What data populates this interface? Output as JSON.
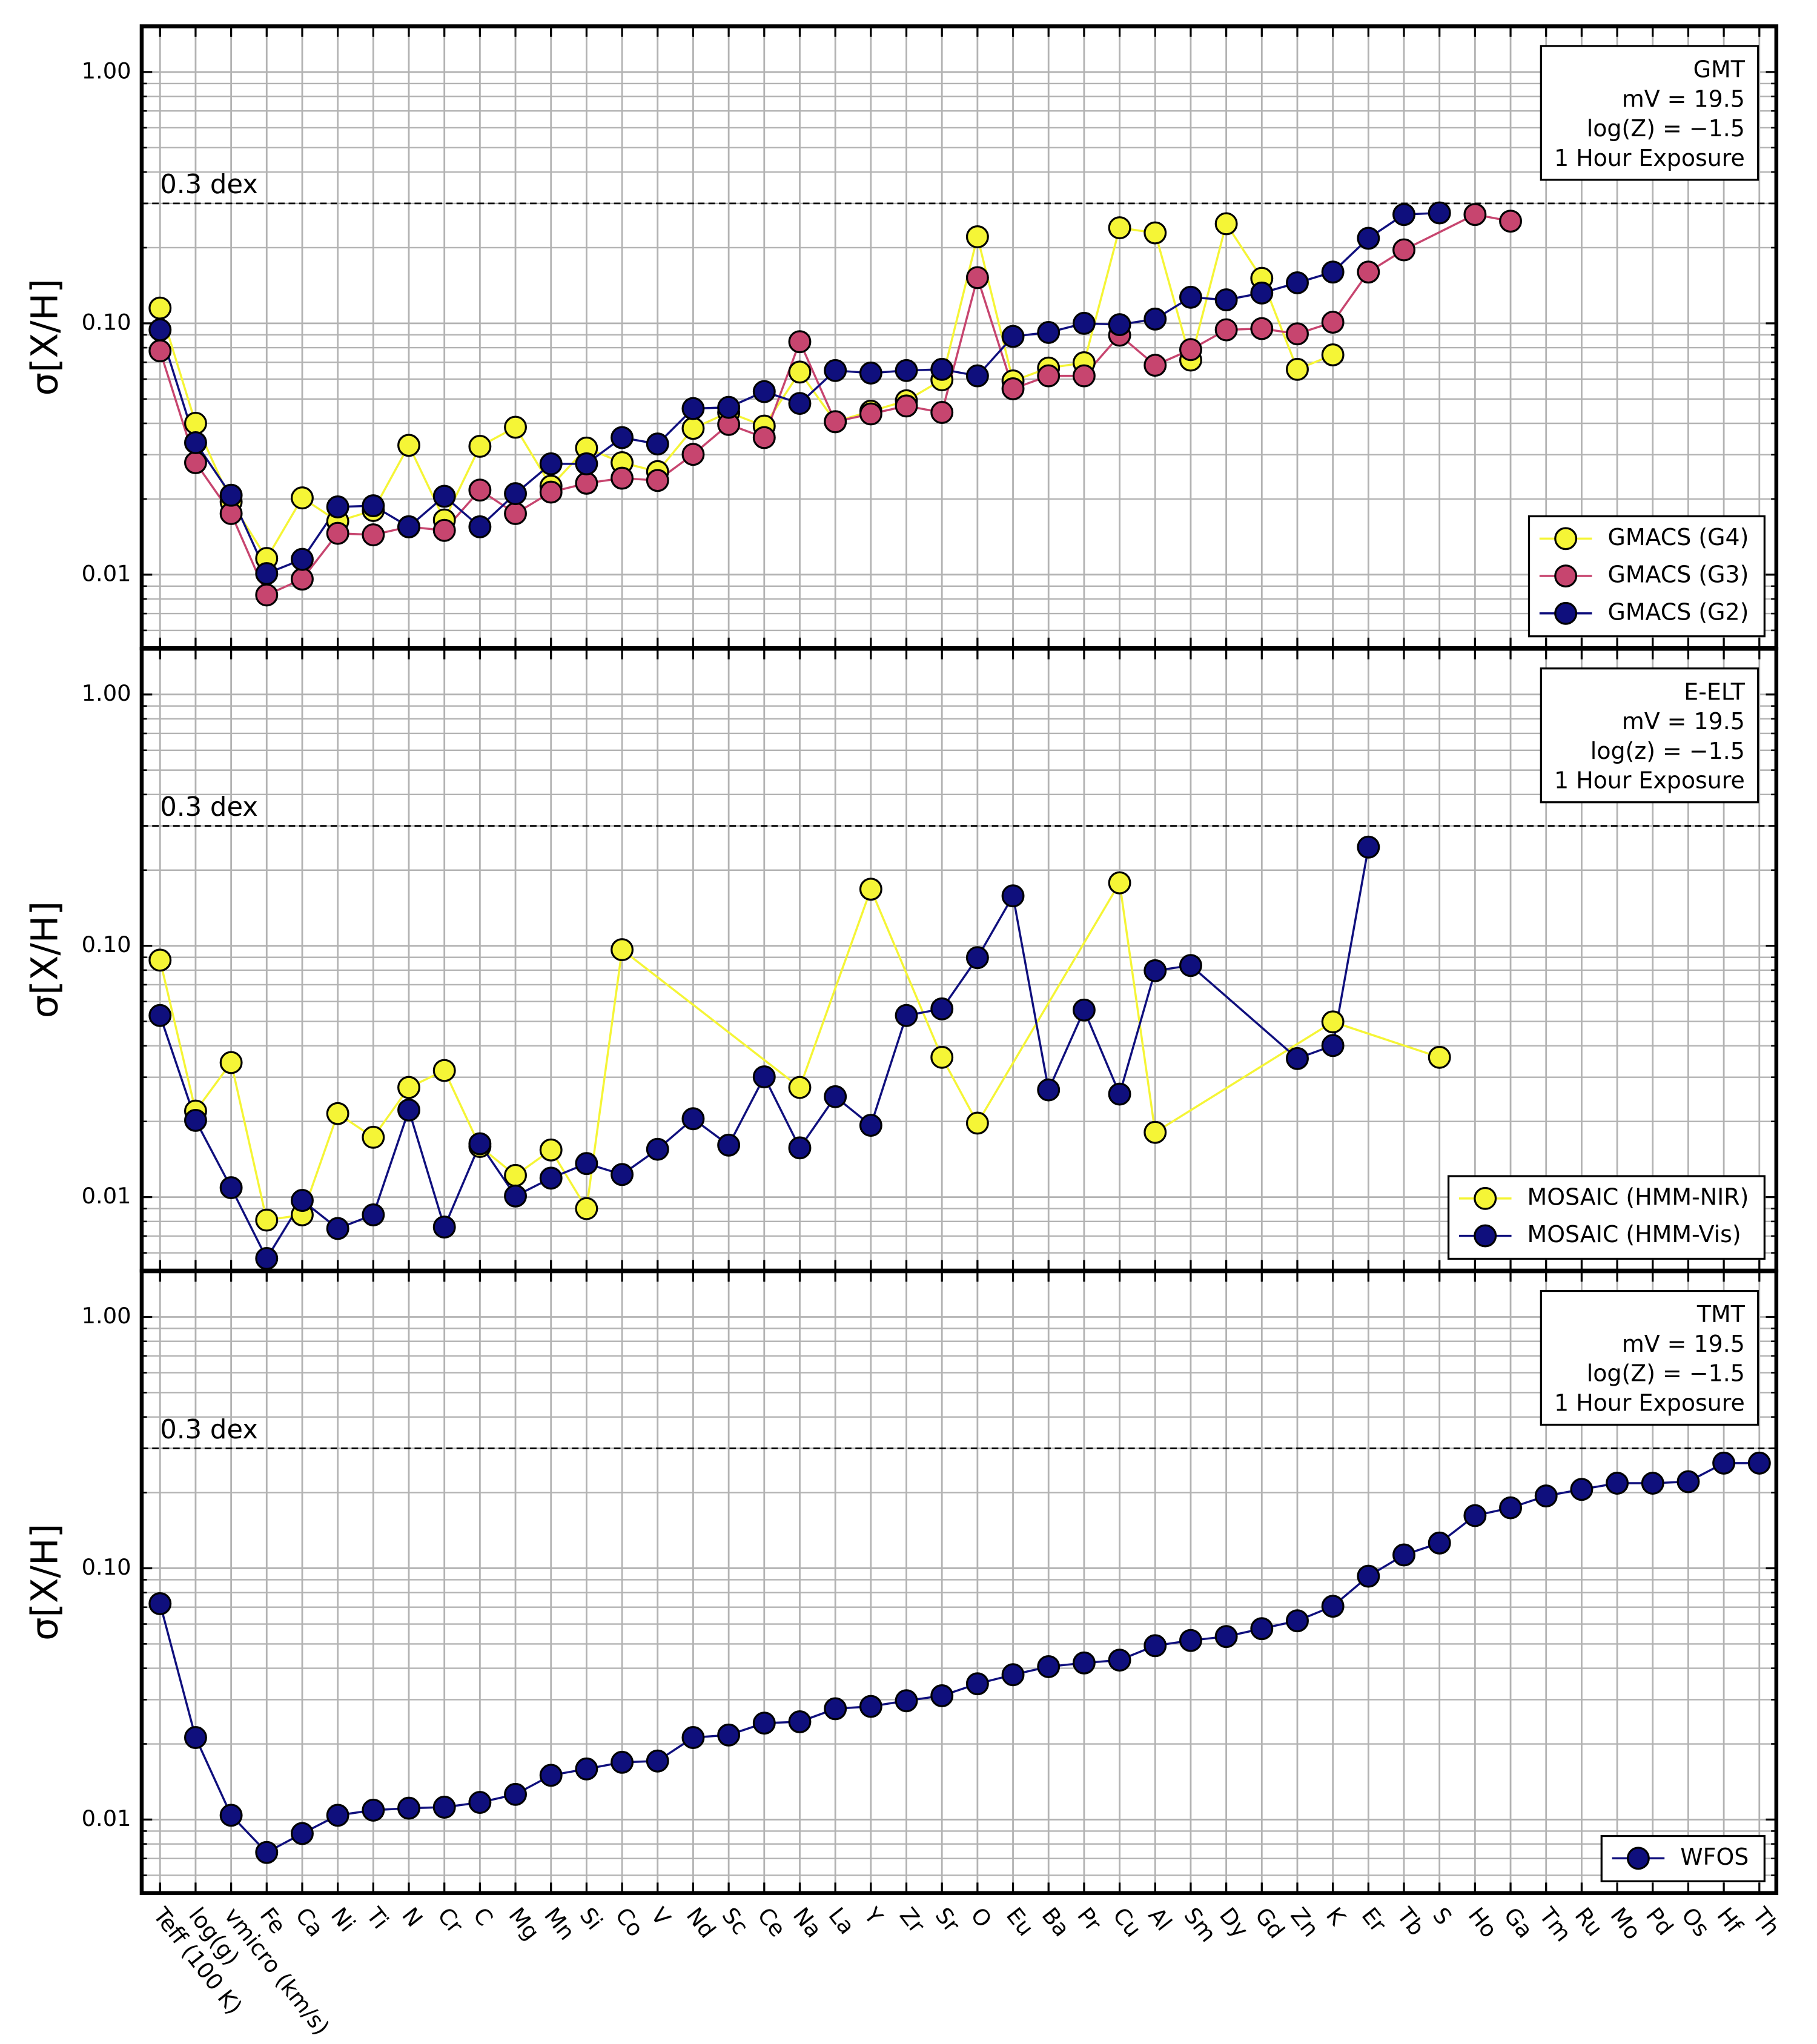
{
  "chart_data": [
    {
      "type": "line",
      "ylabel": "σ[X/H]",
      "log_scale": true,
      "grid": true,
      "legend": "lower right",
      "annotation_box": [
        "GMT",
        "mV = 19.5",
        "log(Z) = −1.5",
        "1 Hour Exposure"
      ],
      "reference_line": {
        "value": 0.3,
        "label": "0.3 dex"
      },
      "ylim": [
        0.0051,
        1.52
      ],
      "yticks": [
        {
          "value": 0.01,
          "label": "0.01"
        },
        {
          "value": 0.1,
          "label": "0.10"
        },
        {
          "value": 1,
          "label": "1.00"
        }
      ],
      "yticks_minor": [
        0.006,
        0.007,
        0.008,
        0.009,
        0.02,
        0.03,
        0.04,
        0.05,
        0.06,
        0.07,
        0.08,
        0.09,
        0.2,
        0.3,
        0.4,
        0.5,
        0.6,
        0.7,
        0.8,
        0.9
      ],
      "series": [
        {
          "name": "GMACS (G4)",
          "color": "#f5f536",
          "values": [
            0.115,
            0.04,
            0.0195,
            0.0116,
            0.0202,
            0.0163,
            0.018,
            0.0327,
            0.0165,
            0.0324,
            0.0386,
            0.0225,
            0.0319,
            0.0279,
            0.0257,
            0.0382,
            0.0442,
            0.039,
            0.064,
            0.0406,
            0.0447,
            0.0492,
            0.0596,
            0.221,
            0.059,
            0.0664,
            0.0697,
            0.24,
            0.229,
            0.0714,
            0.249,
            0.151,
            0.0656,
            0.0749,
            null,
            null,
            null,
            null,
            null,
            null,
            null,
            null,
            null,
            null,
            null,
            null
          ]
        },
        {
          "name": "GMACS (G3)",
          "color": "#c7456f",
          "values": [
            0.0777,
            0.0279,
            0.0175,
            0.0083,
            0.0096,
            0.0146,
            0.0144,
            0.0155,
            0.015,
            0.0217,
            0.0175,
            0.0213,
            0.0231,
            0.0242,
            0.0237,
            0.0301,
            0.0396,
            0.0351,
            0.0845,
            0.0406,
            0.0436,
            0.0469,
            0.0442,
            0.152,
            0.0549,
            0.0618,
            0.0618,
            0.0897,
            0.0681,
            0.0786,
            0.0942,
            0.0953,
            0.0908,
            0.101,
            0.16,
            0.196,
            null,
            0.271,
            0.255,
            null,
            null,
            null,
            null,
            null,
            null,
            null
          ]
        },
        {
          "name": "GMACS (G2)",
          "color": "#0f0f7d",
          "values": [
            0.0942,
            0.0335,
            0.0207,
            0.0101,
            0.0115,
            0.0186,
            0.0188,
            0.0155,
            0.0205,
            0.0155,
            0.021,
            0.0276,
            0.0276,
            0.0351,
            0.0331,
            0.0458,
            0.0463,
            0.0535,
            0.048,
            0.0649,
            0.0634,
            0.0649,
            0.0656,
            0.0618,
            0.0887,
            0.092,
            0.1,
            0.0988,
            0.104,
            0.127,
            0.124,
            0.132,
            0.145,
            0.16,
            0.218,
            0.271,
            0.275,
            null,
            null,
            null,
            null,
            null,
            null,
            null,
            null,
            null
          ]
        }
      ]
    },
    {
      "type": "line",
      "ylabel": "σ[X/H]",
      "log_scale": true,
      "grid": true,
      "legend": "lower right",
      "annotation_box": [
        "E-ELT",
        "mV = 19.5",
        "log(z) = −1.5",
        "1 Hour Exposure"
      ],
      "reference_line": {
        "value": 0.3,
        "label": "0.3 dex"
      },
      "ylim": [
        0.0051,
        1.52
      ],
      "yticks": [
        {
          "value": 0.01,
          "label": "0.01"
        },
        {
          "value": 0.1,
          "label": "0.10"
        },
        {
          "value": 1,
          "label": "1.00"
        }
      ],
      "yticks_minor": [
        0.006,
        0.007,
        0.008,
        0.009,
        0.02,
        0.03,
        0.04,
        0.05,
        0.06,
        0.07,
        0.08,
        0.09,
        0.2,
        0.3,
        0.4,
        0.5,
        0.6,
        0.7,
        0.8,
        0.9
      ],
      "series": [
        {
          "name": "MOSAIC (HMM-NIR)",
          "color": "#f5f536",
          "values": [
            0.0877,
            0.022,
            0.0343,
            0.0081,
            0.0085,
            0.0215,
            0.0173,
            0.0273,
            0.0319,
            0.0159,
            0.0122,
            0.0154,
            0.009,
            0.0965,
            null,
            null,
            null,
            null,
            0.0273,
            null,
            0.168,
            null,
            0.036,
            0.0197,
            null,
            null,
            null,
            0.178,
            0.0181,
            null,
            null,
            null,
            null,
            0.0498,
            null,
            null,
            0.036,
            null,
            null,
            null,
            null,
            null,
            null,
            null,
            null,
            null
          ]
        },
        {
          "name": "MOSAIC (HMM-Vis)",
          "color": "#0f0f7d",
          "values": [
            0.0528,
            0.0202,
            0.0109,
            0.0057,
            0.0097,
            0.0075,
            0.0085,
            0.0222,
            0.0076,
            0.0163,
            0.0101,
            0.0119,
            0.0136,
            0.0123,
            0.0155,
            0.0205,
            0.0161,
            0.0301,
            0.0157,
            0.0251,
            0.0193,
            0.0528,
            0.0561,
            0.0897,
            0.158,
            0.0267,
            0.0555,
            0.0257,
            0.0796,
            0.0835,
            null,
            null,
            0.0356,
            0.0401,
            0.247,
            null,
            null,
            null,
            null,
            null,
            null,
            null,
            null,
            null,
            null,
            null
          ]
        }
      ]
    },
    {
      "type": "line",
      "ylabel": "σ[X/H]",
      "log_scale": true,
      "grid": true,
      "legend": "lower right",
      "annotation_box": [
        "TMT",
        "mV = 19.5",
        "log(Z) = −1.5",
        "1 Hour Exposure"
      ],
      "reference_line": {
        "value": 0.3,
        "label": "0.3 dex"
      },
      "ylim": [
        0.0051,
        1.52
      ],
      "yticks": [
        {
          "value": 0.01,
          "label": "0.01"
        },
        {
          "value": 0.1,
          "label": "0.10"
        },
        {
          "value": 1,
          "label": "1.00"
        }
      ],
      "yticks_minor": [
        0.006,
        0.007,
        0.008,
        0.009,
        0.02,
        0.03,
        0.04,
        0.05,
        0.06,
        0.07,
        0.08,
        0.09,
        0.2,
        0.3,
        0.4,
        0.5,
        0.6,
        0.7,
        0.8,
        0.9
      ],
      "categories": [
        "Teff (100 K)",
        "log(g)",
        "vmicro (km/s)",
        "Fe",
        "Ca",
        "Ni",
        "Ti",
        "N",
        "Cr",
        "C",
        "Mg",
        "Mn",
        "Si",
        "Co",
        "V",
        "Nd",
        "Sc",
        "Ce",
        "Na",
        "La",
        "Y",
        "Zr",
        "Sr",
        "O",
        "Eu",
        "Ba",
        "Pr",
        "Cu",
        "Al",
        "Sm",
        "Dy",
        "Gd",
        "Zn",
        "K",
        "Er",
        "Tb",
        "S",
        "Ho",
        "Ga",
        "Tm",
        "Ru",
        "Mo",
        "Pd",
        "Os",
        "Hf",
        "Th"
      ],
      "series": [
        {
          "name": "WFOS",
          "color": "#0f0f7d",
          "values": [
            0.0723,
            0.0212,
            0.0104,
            0.0074,
            0.0088,
            0.0104,
            0.0109,
            0.0111,
            0.0112,
            0.0117,
            0.0126,
            0.015,
            0.0159,
            0.0169,
            0.0171,
            0.0212,
            0.0217,
            0.0242,
            0.0245,
            0.0276,
            0.0282,
            0.0297,
            0.0311,
            0.0347,
            0.0377,
            0.0406,
            0.042,
            0.0431,
            0.0492,
            0.0516,
            0.0535,
            0.0575,
            0.0618,
            0.0706,
            0.093,
            0.113,
            0.126,
            0.162,
            0.174,
            0.194,
            0.206,
            0.218,
            0.218,
            0.221,
            0.262,
            0.262
          ]
        }
      ]
    }
  ]
}
